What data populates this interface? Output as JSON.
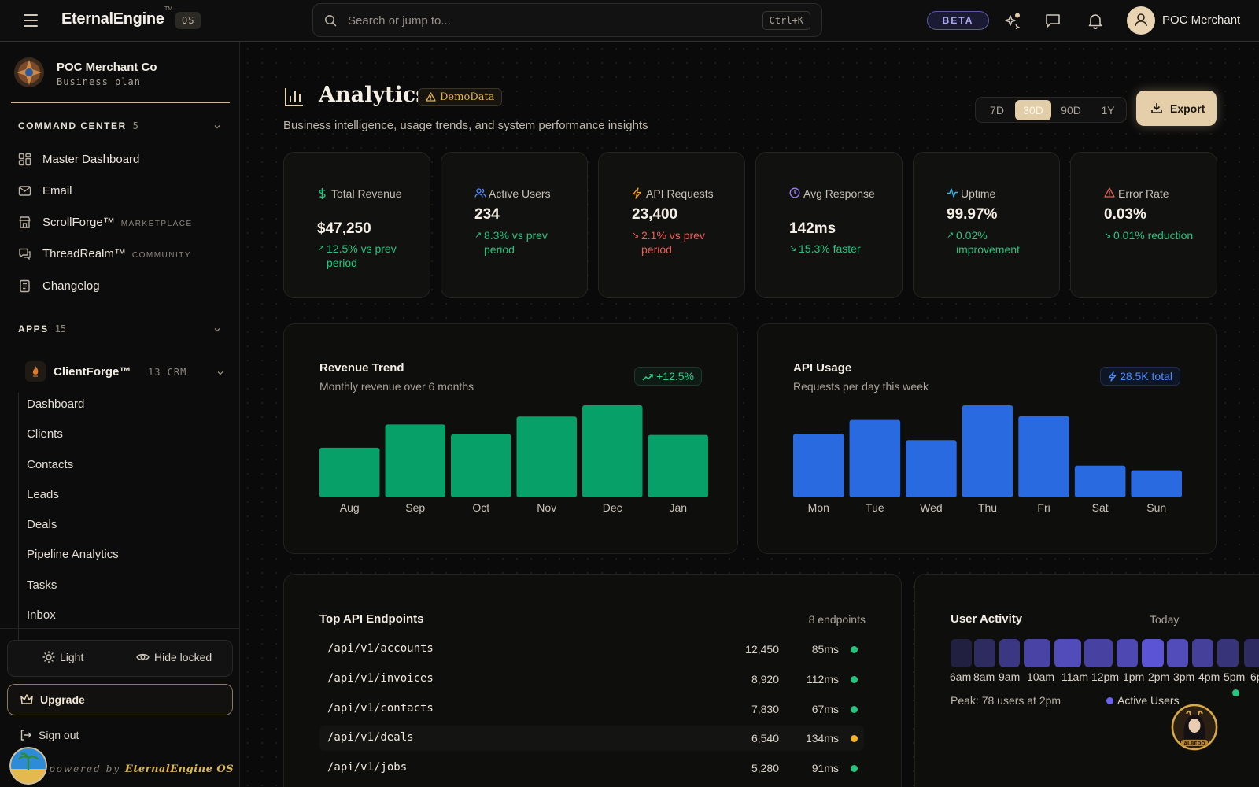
{
  "topbar": {
    "brand": "EternalEngine",
    "brand_tm": "TM",
    "brand_badge": "OS",
    "search_placeholder": "Search or jump to...",
    "search_shortcut": "Ctrl+K",
    "beta_label": "BETA",
    "user_name": "POC Merchant"
  },
  "sidebar": {
    "org_name": "POC Merchant Co",
    "org_plan": "Business plan",
    "command_center": {
      "title": "COMMAND CENTER",
      "count": "5"
    },
    "nav": [
      {
        "label": "Master Dashboard",
        "tag": "",
        "icon": "grid-icon"
      },
      {
        "label": "Email",
        "tag": "",
        "icon": "mail-icon"
      },
      {
        "label": "ScrollForge™",
        "tag": "MARKETPLACE",
        "icon": "store-icon"
      },
      {
        "label": "ThreadRealm™",
        "tag": "COMMUNITY",
        "icon": "chat-icon"
      },
      {
        "label": "Changelog",
        "tag": "",
        "icon": "changelog-icon"
      }
    ],
    "apps": {
      "title": "APPS",
      "count": "15"
    },
    "app": {
      "name": "ClientForge™",
      "meta": "13 CRM"
    },
    "app_items": [
      "Dashboard",
      "Clients",
      "Contacts",
      "Leads",
      "Deals",
      "Pipeline Analytics",
      "Tasks",
      "Inbox"
    ],
    "theme_label": "Light",
    "hide_locked_label": "Hide locked",
    "upgrade_label": "Upgrade",
    "signout_label": "Sign out",
    "powered_prefix": "powered by",
    "powered_brand": "EternalEngine OS"
  },
  "page": {
    "title": "Analytics",
    "demo_badge": "DemoData",
    "subtitle": "Business intelligence, usage trends, and system performance insights",
    "ranges": [
      "7D",
      "30D",
      "90D",
      "1Y"
    ],
    "active_range": "30D",
    "export_label": "Export"
  },
  "kpis": [
    {
      "label": "Total Revenue",
      "value": "$47,250",
      "trend": "12.5% vs prev period",
      "direction": "up",
      "icon": "dollar-icon",
      "color": "#24c57f"
    },
    {
      "label": "Active Users",
      "value": "234",
      "trend": "8.3% vs prev period",
      "direction": "up",
      "icon": "users-icon",
      "color": "#4f8dff"
    },
    {
      "label": "API Requests",
      "value": "23,400",
      "trend": "2.1% vs prev period",
      "direction": "down",
      "icon": "bolt-icon",
      "color": "#e8a23a"
    },
    {
      "label": "Avg Response",
      "value": "142ms",
      "trend": "15.3% faster",
      "direction": "up",
      "icon": "clock-icon",
      "color": "#9b7bff"
    },
    {
      "label": "Uptime",
      "value": "99.97%",
      "trend": "0.02% improvement",
      "direction": "up",
      "icon": "activity-icon",
      "color": "#2fb4e8"
    },
    {
      "label": "Error Rate",
      "value": "0.03%",
      "trend": "0.01% reduction",
      "direction": "up",
      "icon": "alert-icon",
      "color": "#ef5b55"
    }
  ],
  "revenue_card": {
    "title": "Revenue Trend",
    "subtitle": "Monthly revenue over 6 months",
    "badge": "+12.5%"
  },
  "api_card": {
    "title": "API Usage",
    "subtitle": "Requests per day this week",
    "badge": "28.5K total"
  },
  "chart_data": [
    {
      "type": "bar",
      "title": "Revenue Trend",
      "categories": [
        "Aug",
        "Sep",
        "Oct",
        "Nov",
        "Dec",
        "Jan"
      ],
      "values": [
        62,
        91,
        79,
        101,
        115,
        78
      ],
      "ylim": [
        0,
        115
      ],
      "color": "#06a068",
      "grid": false
    },
    {
      "type": "bar",
      "title": "API Usage",
      "categories": [
        "Mon",
        "Tue",
        "Wed",
        "Thu",
        "Fri",
        "Sat",
        "Sun"
      ],
      "values": [
        82,
        100,
        74,
        119,
        105,
        41,
        35
      ],
      "ylim": [
        0,
        119
      ],
      "color": "#2a6ae0",
      "grid": false
    }
  ],
  "endpoints_card": {
    "title": "Top API Endpoints",
    "count": "8 endpoints",
    "rows": [
      {
        "path": "/api/v1/accounts",
        "requests": "12,450",
        "latency": "85ms",
        "status_color": "#24c57f"
      },
      {
        "path": "/api/v1/invoices",
        "requests": "8,920",
        "latency": "112ms",
        "status_color": "#24c57f"
      },
      {
        "path": "/api/v1/contacts",
        "requests": "7,830",
        "latency": "67ms",
        "status_color": "#24c57f"
      },
      {
        "path": "/api/v1/deals",
        "requests": "6,540",
        "latency": "134ms",
        "status_color": "#f0b429"
      },
      {
        "path": "/api/v1/jobs",
        "requests": "5,280",
        "latency": "91ms",
        "status_color": "#24c57f"
      }
    ]
  },
  "activity_card": {
    "title": "User Activity",
    "period": "Today",
    "hours": [
      "6am",
      "8am",
      "9am",
      "10am",
      "11am",
      "12pm",
      "1pm",
      "2pm",
      "3pm",
      "4pm",
      "5pm",
      "6p"
    ],
    "intensity": [
      0.12,
      0.3,
      0.5,
      0.72,
      0.85,
      0.7,
      0.8,
      1.0,
      0.85,
      0.65,
      0.45,
      0.3
    ],
    "peak": "Peak: 78 users at 2pm",
    "legend": "Active Users"
  }
}
